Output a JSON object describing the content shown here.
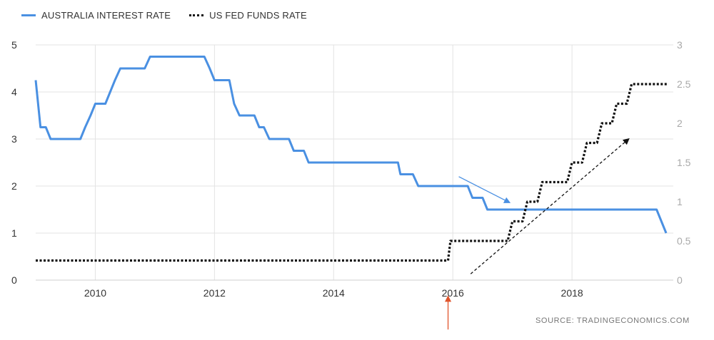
{
  "legend": {
    "aus_label": "AUSTRALIA INTEREST RATE",
    "us_label": "US FED FUNDS RATE"
  },
  "source": "SOURCE:  TRADINGECONOMICS.COM",
  "colors": {
    "aus": "#4a90e2",
    "us": "#111111",
    "grid": "#e3e3e3",
    "left_axis": "#333333",
    "right_axis": "#a9a9a9",
    "annot_blue": "#4a90e2",
    "annot_black": "#111111",
    "annot_red": "#e0542b"
  },
  "chart_data": {
    "type": "line",
    "xlim": [
      2009.0,
      2019.7
    ],
    "x_ticks": [
      2010,
      2012,
      2014,
      2016,
      2018
    ],
    "x_tick_labels": [
      "2010",
      "2012",
      "2014",
      "2016",
      "2018"
    ],
    "y_left": {
      "lim": [
        0,
        5
      ],
      "ticks": [
        0,
        1,
        2,
        3,
        4,
        5
      ],
      "labels": [
        "0",
        "1",
        "2",
        "3",
        "4",
        "5"
      ]
    },
    "y_right": {
      "lim": [
        0,
        3
      ],
      "ticks": [
        0,
        0.5,
        1,
        1.5,
        2,
        2.5,
        3
      ],
      "labels": [
        "0",
        "0.5",
        "1",
        "1.5",
        "2",
        "2.5",
        "3"
      ]
    },
    "grid": true,
    "legend_position": "top-left",
    "series": [
      {
        "name": "AUSTRALIA INTEREST RATE",
        "axis": "left",
        "style": "solid",
        "points": [
          [
            2009.0,
            4.25
          ],
          [
            2009.08,
            3.25
          ],
          [
            2009.17,
            3.25
          ],
          [
            2009.25,
            3.0
          ],
          [
            2009.75,
            3.0
          ],
          [
            2009.83,
            3.25
          ],
          [
            2009.92,
            3.5
          ],
          [
            2010.0,
            3.75
          ],
          [
            2010.17,
            3.75
          ],
          [
            2010.25,
            4.0
          ],
          [
            2010.33,
            4.25
          ],
          [
            2010.42,
            4.5
          ],
          [
            2010.83,
            4.5
          ],
          [
            2010.92,
            4.75
          ],
          [
            2011.83,
            4.75
          ],
          [
            2011.92,
            4.5
          ],
          [
            2012.0,
            4.25
          ],
          [
            2012.25,
            4.25
          ],
          [
            2012.33,
            3.75
          ],
          [
            2012.42,
            3.5
          ],
          [
            2012.67,
            3.5
          ],
          [
            2012.75,
            3.25
          ],
          [
            2012.83,
            3.25
          ],
          [
            2012.92,
            3.0
          ],
          [
            2013.25,
            3.0
          ],
          [
            2013.33,
            2.75
          ],
          [
            2013.5,
            2.75
          ],
          [
            2013.58,
            2.5
          ],
          [
            2015.08,
            2.5
          ],
          [
            2015.12,
            2.25
          ],
          [
            2015.33,
            2.25
          ],
          [
            2015.42,
            2.0
          ],
          [
            2016.25,
            2.0
          ],
          [
            2016.33,
            1.75
          ],
          [
            2016.5,
            1.75
          ],
          [
            2016.58,
            1.5
          ],
          [
            2019.42,
            1.5
          ],
          [
            2019.58,
            1.0
          ]
        ]
      },
      {
        "name": "US FED FUNDS RATE",
        "axis": "right",
        "style": "dotted",
        "points": [
          [
            2009.0,
            0.25
          ],
          [
            2015.92,
            0.25
          ],
          [
            2015.96,
            0.5
          ],
          [
            2016.92,
            0.5
          ],
          [
            2017.0,
            0.75
          ],
          [
            2017.17,
            0.75
          ],
          [
            2017.25,
            1.0
          ],
          [
            2017.42,
            1.0
          ],
          [
            2017.5,
            1.25
          ],
          [
            2017.92,
            1.25
          ],
          [
            2018.0,
            1.5
          ],
          [
            2018.17,
            1.5
          ],
          [
            2018.25,
            1.75
          ],
          [
            2018.42,
            1.75
          ],
          [
            2018.5,
            2.0
          ],
          [
            2018.67,
            2.0
          ],
          [
            2018.75,
            2.25
          ],
          [
            2018.92,
            2.25
          ],
          [
            2019.0,
            2.5
          ],
          [
            2019.62,
            2.5
          ]
        ]
      }
    ],
    "annotations": [
      {
        "type": "arrow",
        "name": "blue-trend-arrow",
        "color_key": "annot_blue",
        "dashed": false,
        "axis": "left",
        "from": [
          2016.1,
          2.2
        ],
        "to": [
          2016.95,
          1.65
        ]
      },
      {
        "type": "arrow",
        "name": "black-dashed-trend-arrow",
        "color_key": "annot_black",
        "dashed": true,
        "axis": "right",
        "from": [
          2016.3,
          0.08
        ],
        "to": [
          2018.95,
          1.8
        ]
      },
      {
        "type": "arrow",
        "name": "red-marker-arrow",
        "color_key": "annot_red",
        "dashed": false,
        "axis": "left",
        "from": [
          2015.92,
          -1.05
        ],
        "to": [
          2015.92,
          -0.35
        ]
      }
    ]
  }
}
